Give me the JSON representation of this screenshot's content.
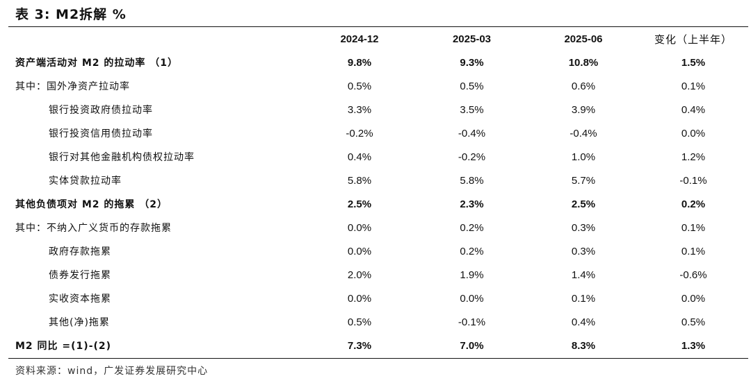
{
  "title": "表 3:  M2拆解  %",
  "columns": [
    "",
    "2024-12",
    "2025-03",
    "2025-06",
    "变化（上半年）"
  ],
  "rows": [
    {
      "label": "资产端活动对 M2 的拉动率   （1）",
      "values": [
        "9.8%",
        "9.3%",
        "10.8%",
        "1.5%"
      ],
      "bold": true,
      "indent": false
    },
    {
      "label": "其中：国外净资产拉动率",
      "values": [
        "0.5%",
        "0.5%",
        "0.6%",
        "0.1%"
      ],
      "bold": false,
      "indent": false
    },
    {
      "label": "银行投资政府债拉动率",
      "values": [
        "3.3%",
        "3.5%",
        "3.9%",
        "0.4%"
      ],
      "bold": false,
      "indent": true
    },
    {
      "label": "银行投资信用债拉动率",
      "values": [
        "-0.2%",
        "-0.4%",
        "-0.4%",
        "0.0%"
      ],
      "bold": false,
      "indent": true
    },
    {
      "label": "银行对其他金融机构债权拉动率",
      "values": [
        "0.4%",
        "-0.2%",
        "1.0%",
        "1.2%"
      ],
      "bold": false,
      "indent": true
    },
    {
      "label": "实体贷款拉动率",
      "values": [
        "5.8%",
        "5.8%",
        "5.7%",
        "-0.1%"
      ],
      "bold": false,
      "indent": true
    },
    {
      "label": "其他负债项对 M2 的拖累  （2）",
      "values": [
        "2.5%",
        "2.3%",
        "2.5%",
        "0.2%"
      ],
      "bold": true,
      "indent": false
    },
    {
      "label": "其中：不纳入广义货币的存款拖累",
      "values": [
        "0.0%",
        "0.2%",
        "0.3%",
        "0.1%"
      ],
      "bold": false,
      "indent": false
    },
    {
      "label": "政府存款拖累",
      "values": [
        "0.0%",
        "0.2%",
        "0.3%",
        "0.1%"
      ],
      "bold": false,
      "indent": true
    },
    {
      "label": "债券发行拖累",
      "values": [
        "2.0%",
        "1.9%",
        "1.4%",
        "-0.6%"
      ],
      "bold": false,
      "indent": true
    },
    {
      "label": "实收资本拖累",
      "values": [
        "0.0%",
        "0.0%",
        "0.1%",
        "0.0%"
      ],
      "bold": false,
      "indent": true
    },
    {
      "label": "其他(净)拖累",
      "values": [
        "0.5%",
        "-0.1%",
        "0.4%",
        "0.5%"
      ],
      "bold": false,
      "indent": true
    },
    {
      "label": "M2 同比  =(1)-(2)",
      "values": [
        "7.3%",
        "7.0%",
        "8.3%",
        "1.3%"
      ],
      "bold": true,
      "indent": false
    }
  ],
  "source": "资料来源：wind，广发证券发展研究中心"
}
